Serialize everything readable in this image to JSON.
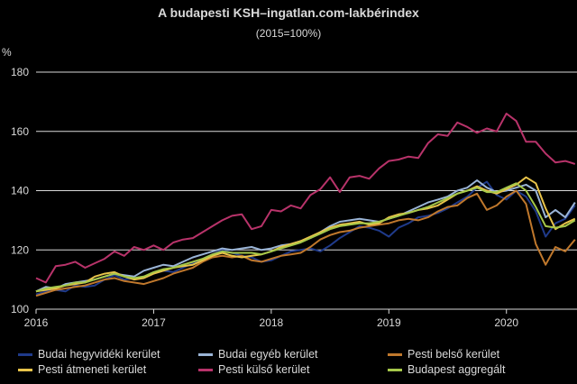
{
  "chart_data": {
    "type": "line",
    "title": "A budapesti KSH–ingatlan.com-lakbérindex",
    "subtitle": "(2015=100%)",
    "ylabel": "%",
    "xlabel": "",
    "ylim": [
      100,
      180
    ],
    "yticks": [
      100,
      120,
      140,
      160,
      180
    ],
    "xlim": [
      2016,
      2020.6
    ],
    "xticks": [
      2016,
      2017,
      2018,
      2019,
      2020
    ],
    "grid": "horizontal",
    "legend_position": "bottom",
    "x": [
      2016.0,
      2016.083,
      2016.167,
      2016.25,
      2016.333,
      2016.417,
      2016.5,
      2016.583,
      2016.667,
      2016.75,
      2016.833,
      2016.917,
      2017.0,
      2017.083,
      2017.167,
      2017.25,
      2017.333,
      2017.417,
      2017.5,
      2017.583,
      2017.667,
      2017.75,
      2017.833,
      2017.917,
      2018.0,
      2018.083,
      2018.167,
      2018.25,
      2018.333,
      2018.417,
      2018.5,
      2018.583,
      2018.667,
      2018.75,
      2018.833,
      2018.917,
      2019.0,
      2019.083,
      2019.167,
      2019.25,
      2019.333,
      2019.417,
      2019.5,
      2019.583,
      2019.667,
      2019.75,
      2019.833,
      2019.917,
      2020.0,
      2020.083,
      2020.167,
      2020.25,
      2020.333,
      2020.417,
      2020.5,
      2020.583
    ],
    "series": [
      {
        "name": "Budai hegyvidéki kerület",
        "color": "#1f3a8a",
        "values": [
          105.0,
          106.0,
          106.5,
          106.0,
          108.0,
          107.5,
          108.0,
          110.0,
          111.5,
          110.0,
          110.5,
          111.0,
          112.0,
          113.0,
          112.5,
          114.0,
          115.5,
          117.0,
          118.5,
          120.0,
          119.0,
          118.0,
          117.5,
          116.0,
          116.5,
          118.0,
          119.5,
          120.0,
          120.5,
          119.5,
          121.5,
          124.0,
          126.0,
          128.0,
          127.5,
          126.5,
          124.5,
          127.5,
          129.0,
          131.0,
          131.5,
          132.5,
          134.0,
          136.0,
          138.0,
          141.0,
          143.0,
          138.5,
          137.0,
          140.0,
          138.0,
          133.0,
          124.5,
          129.0,
          130.5,
          135.0
        ]
      },
      {
        "name": "Budai egyéb kerület",
        "color": "#9ab4d6",
        "values": [
          106.0,
          107.5,
          107.0,
          108.5,
          109.0,
          109.5,
          110.0,
          111.0,
          112.0,
          111.5,
          111.0,
          113.0,
          114.0,
          115.0,
          114.5,
          116.0,
          117.5,
          118.5,
          119.5,
          120.5,
          120.0,
          120.5,
          121.0,
          120.0,
          120.5,
          121.5,
          122.0,
          123.0,
          124.0,
          126.0,
          128.0,
          129.5,
          130.0,
          130.5,
          130.0,
          129.5,
          130.5,
          131.5,
          133.0,
          134.5,
          136.0,
          137.0,
          138.0,
          140.0,
          141.0,
          143.5,
          141.0,
          139.5,
          140.0,
          141.0,
          142.0,
          140.0,
          131.0,
          133.5,
          131.0,
          136.0
        ]
      },
      {
        "name": "Pesti belső kerület",
        "color": "#c0782c",
        "values": [
          104.5,
          105.5,
          106.5,
          107.0,
          107.5,
          108.0,
          109.0,
          110.0,
          110.5,
          109.5,
          109.0,
          108.5,
          109.5,
          110.5,
          112.0,
          113.0,
          114.0,
          116.0,
          117.5,
          118.0,
          117.5,
          118.0,
          116.5,
          116.0,
          117.0,
          118.0,
          118.5,
          119.0,
          121.0,
          123.5,
          125.0,
          126.0,
          126.5,
          127.5,
          128.0,
          128.5,
          129.0,
          130.0,
          130.5,
          130.0,
          131.0,
          133.0,
          134.5,
          135.0,
          137.5,
          139.0,
          133.5,
          135.0,
          138.0,
          140.0,
          135.5,
          122.0,
          115.0,
          121.0,
          119.5,
          123.5
        ]
      },
      {
        "name": "Pesti átmeneti kerület",
        "color": "#e8c34a",
        "values": [
          106.0,
          106.5,
          107.0,
          108.0,
          108.5,
          109.0,
          111.0,
          112.0,
          112.5,
          111.0,
          110.0,
          110.5,
          112.0,
          113.0,
          114.0,
          114.5,
          115.0,
          116.5,
          118.0,
          119.0,
          118.0,
          117.5,
          118.0,
          118.5,
          119.5,
          121.0,
          122.0,
          123.0,
          124.5,
          126.0,
          127.5,
          128.5,
          129.0,
          129.5,
          128.5,
          129.0,
          131.0,
          132.0,
          132.5,
          133.5,
          134.0,
          135.0,
          137.0,
          139.0,
          140.0,
          141.5,
          140.0,
          139.0,
          140.5,
          142.0,
          144.5,
          142.5,
          134.0,
          127.0,
          129.0,
          130.5
        ]
      },
      {
        "name": "Pesti külső kerület",
        "color": "#b8336a",
        "values": [
          110.5,
          109.0,
          114.5,
          115.0,
          116.0,
          114.0,
          115.5,
          117.0,
          119.5,
          118.0,
          121.0,
          120.0,
          121.5,
          120.0,
          122.5,
          123.5,
          124.0,
          126.0,
          128.0,
          130.0,
          131.5,
          132.0,
          127.0,
          128.0,
          133.5,
          133.0,
          135.0,
          134.0,
          138.5,
          140.5,
          144.5,
          139.5,
          144.5,
          145.0,
          144.0,
          147.5,
          150.0,
          150.5,
          151.5,
          151.0,
          156.0,
          159.0,
          158.5,
          163.0,
          161.5,
          159.5,
          161.0,
          160.0,
          166.0,
          163.5,
          156.5,
          156.5,
          152.5,
          149.5,
          150.0,
          149.0
        ]
      },
      {
        "name": "Budapest aggregált",
        "color": "#a6c84a",
        "values": [
          106.0,
          107.0,
          107.5,
          108.0,
          109.0,
          109.0,
          110.0,
          111.0,
          112.0,
          111.0,
          110.5,
          111.0,
          112.5,
          113.5,
          114.0,
          115.0,
          116.0,
          117.0,
          118.5,
          119.5,
          119.0,
          119.0,
          119.0,
          118.5,
          119.5,
          120.5,
          121.5,
          122.5,
          124.0,
          125.5,
          127.0,
          128.0,
          128.5,
          129.0,
          129.0,
          129.5,
          130.5,
          131.5,
          132.5,
          133.5,
          134.5,
          136.0,
          137.5,
          139.0,
          140.0,
          141.0,
          139.5,
          139.5,
          141.0,
          142.5,
          140.0,
          134.5,
          128.0,
          127.5,
          128.0,
          130.0
        ]
      }
    ]
  }
}
